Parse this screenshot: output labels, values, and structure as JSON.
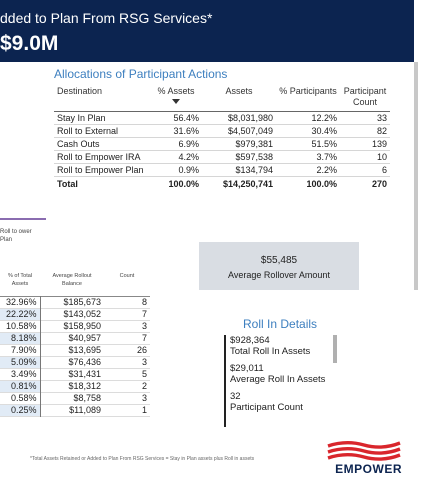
{
  "header": {
    "title": "dded to Plan From RSG Services*",
    "value": "$9.0M"
  },
  "allocations": {
    "title": "Allocations of Participant Actions",
    "columns": {
      "destination": "Destination",
      "pct_assets": "% Assets",
      "assets": "Assets",
      "pct_participants": "% Participants",
      "count": "Participant Count"
    },
    "rows": [
      {
        "destination": "Stay In Plan",
        "pct_assets": "56.4%",
        "assets": "$8,031,980",
        "pct_participants": "12.2%",
        "count": "33"
      },
      {
        "destination": "Roll to External",
        "pct_assets": "31.6%",
        "assets": "$4,507,049",
        "pct_participants": "30.4%",
        "count": "82"
      },
      {
        "destination": "Cash Outs",
        "pct_assets": "6.9%",
        "assets": "$979,381",
        "pct_participants": "51.5%",
        "count": "139"
      },
      {
        "destination": "Roll to Empower IRA",
        "pct_assets": "4.2%",
        "assets": "$597,538",
        "pct_participants": "3.7%",
        "count": "10"
      },
      {
        "destination": "Roll to Empower Plan",
        "pct_assets": "0.9%",
        "assets": "$134,794",
        "pct_participants": "2.2%",
        "count": "6"
      }
    ],
    "total": {
      "destination": "Total",
      "pct_assets": "100.0%",
      "assets": "$14,250,741",
      "pct_participants": "100.0%",
      "count": "270"
    }
  },
  "left_panel": {
    "roll_label": "Roll to ower Plan",
    "columns": {
      "pct_total": "% of Total Assets",
      "avg_balance": "Average Rollout Balance",
      "count": "Count"
    },
    "rows": [
      {
        "pct": "32.96%",
        "balance": "$185,673",
        "count": "8"
      },
      {
        "pct": "22.22%",
        "balance": "$143,052",
        "count": "7"
      },
      {
        "pct": "10.58%",
        "balance": "$158,950",
        "count": "3"
      },
      {
        "pct": "8.18%",
        "balance": "$40,957",
        "count": "7"
      },
      {
        "pct": "7.90%",
        "balance": "$13,695",
        "count": "26"
      },
      {
        "pct": "5.09%",
        "balance": "$76,436",
        "count": "3"
      },
      {
        "pct": "3.49%",
        "balance": "$31,431",
        "count": "5"
      },
      {
        "pct": "0.81%",
        "balance": "$18,312",
        "count": "2"
      },
      {
        "pct": "0.58%",
        "balance": "$8,758",
        "count": "3"
      },
      {
        "pct": "0.25%",
        "balance": "$11,089",
        "count": "1"
      }
    ]
  },
  "avg_rollover": {
    "value": "$55,485",
    "label": "Average Rollover Amount"
  },
  "roll_in": {
    "title": "Roll In Details",
    "items": [
      {
        "value": "$928,364",
        "label": "Total Roll In Assets"
      },
      {
        "value": "$29,011",
        "label": "Average Roll In Assets"
      },
      {
        "value": "32",
        "label": "Participant Count"
      }
    ]
  },
  "footnote": "*Total Assets Retained or Added to Plan From RSG Services = Stay in Plan assets plus Roll in assets",
  "logo": {
    "text": "EMPOWER",
    "colors": {
      "stripes": "#d9262c",
      "text": "#0c2450"
    }
  },
  "colors": {
    "banner": "#0c2450",
    "accent": "#3d7fbf",
    "card": "#d9dde3",
    "highlight": "#e1ebf6"
  }
}
